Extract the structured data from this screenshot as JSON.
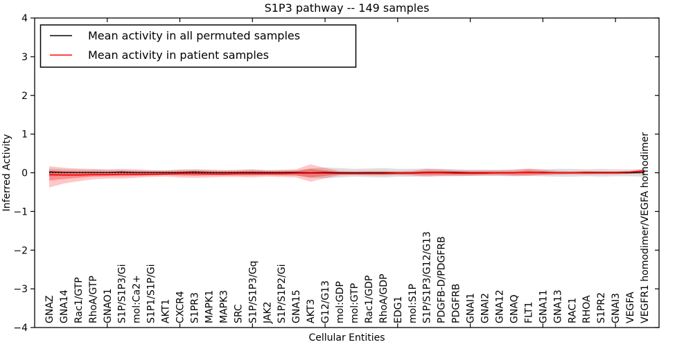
{
  "figure": {
    "title": "S1P3 pathway -- 149 samples",
    "xlabel": "Cellular Entities",
    "ylabel": "Inferred Activity"
  },
  "legend": {
    "position": "upper left",
    "entries": [
      {
        "label": "Mean activity in all permuted samples",
        "color": "#000000"
      },
      {
        "label": "Mean activity in patient samples",
        "color": "#ff0000"
      }
    ]
  },
  "chart_data": {
    "type": "line",
    "title": "S1P3 pathway -- 149 samples",
    "xlabel": "Cellular Entities",
    "ylabel": "Inferred Activity",
    "ylim": [
      -4,
      4
    ],
    "ytick_labels": [
      "4",
      "3",
      "2",
      "1",
      "0",
      "−1",
      "−2",
      "−3",
      "−4"
    ],
    "yticks": [
      4,
      3,
      2,
      1,
      0,
      -1,
      -2,
      -3,
      -4
    ],
    "xtick_positions": [
      5,
      10,
      15,
      20,
      25,
      30,
      35,
      40
    ],
    "grid": false,
    "legend_position": "upper left",
    "zero_line": {
      "value": 0,
      "style": "dotted",
      "color": "#000000"
    },
    "categories": [
      "GNAZ",
      "GNA14",
      "Rac1/GTP",
      "RhoA/GTP",
      "GNAO1",
      "S1P/S1P3/Gi",
      "mol:Ca2+",
      "S1P1/S1P/Gi",
      "AKT1",
      "CXCR4",
      "S1PR3",
      "MAPK1",
      "MAPK3",
      "SRC",
      "S1P/S1P3/Gq",
      "JAK2",
      "S1P/S1P2/Gi",
      "GNA15",
      "AKT3",
      "G12/G13",
      "mol:GDP",
      "mol:GTP",
      "Rac1/GDP",
      "RhoA/GDP",
      "EDG1",
      "mol:S1P",
      "S1P/S1P3/G12/G13",
      "PDGFB-D/PDGFRB",
      "PDGFRB",
      "GNAI1",
      "GNAI2",
      "GNA12",
      "GNAQ",
      "FLT1",
      "GNA11",
      "GNA13",
      "RAC1",
      "RHOA",
      "S1PR2",
      "GNAI3",
      "VEGFA",
      "VEGFR1 homodimer/VEGFA homodimer"
    ],
    "series": [
      {
        "name": "Mean activity in all permuted samples",
        "color": "#000000",
        "values": [
          0.02,
          0.01,
          0.01,
          0.01,
          0.01,
          0.02,
          0.01,
          0.01,
          0.01,
          0.01,
          0.02,
          0.01,
          0.01,
          0.01,
          0.01,
          0.01,
          0.01,
          0.01,
          0.0,
          0.01,
          0.0,
          0.0,
          0.0,
          0.0,
          0.0,
          0.0,
          0.01,
          0.01,
          0.01,
          0.0,
          0.0,
          0.0,
          0.0,
          0.01,
          0.01,
          0.0,
          0.0,
          0.0,
          0.0,
          0.0,
          0.0,
          0.01
        ]
      },
      {
        "name": "Mean activity in patient samples",
        "color": "#ff0000",
        "values": [
          -0.05,
          -0.06,
          -0.06,
          -0.05,
          -0.05,
          -0.04,
          -0.04,
          -0.04,
          -0.03,
          -0.02,
          -0.02,
          -0.03,
          -0.03,
          -0.02,
          -0.02,
          -0.02,
          -0.02,
          -0.01,
          -0.01,
          -0.01,
          -0.02,
          -0.02,
          -0.02,
          -0.02,
          -0.01,
          -0.01,
          0.0,
          0.0,
          -0.01,
          -0.01,
          -0.01,
          0.0,
          0.0,
          0.01,
          0.0,
          0.0,
          0.0,
          0.01,
          0.01,
          0.01,
          0.02,
          0.05
        ]
      }
    ],
    "bands": [
      {
        "name": "permuted-samples-range",
        "color": "#888888",
        "opacity": 0.28,
        "upper": [
          0.11,
          0.09,
          0.08,
          0.08,
          0.07,
          0.07,
          0.06,
          0.06,
          0.06,
          0.08,
          0.08,
          0.07,
          0.06,
          0.06,
          0.08,
          0.06,
          0.06,
          0.07,
          0.11,
          0.14,
          0.12,
          0.1,
          0.11,
          0.12,
          0.1,
          0.1,
          0.11,
          0.1,
          0.09,
          0.08,
          0.08,
          0.08,
          0.09,
          0.1,
          0.09,
          0.1,
          0.1,
          0.09,
          0.1,
          0.09,
          0.09,
          0.1
        ],
        "lower": [
          -0.09,
          -0.07,
          -0.06,
          -0.06,
          -0.05,
          -0.05,
          -0.06,
          -0.06,
          -0.06,
          -0.06,
          -0.06,
          -0.05,
          -0.06,
          -0.06,
          -0.06,
          -0.06,
          -0.06,
          -0.07,
          -0.13,
          -0.14,
          -0.12,
          -0.1,
          -0.11,
          -0.12,
          -0.1,
          -0.1,
          -0.09,
          -0.08,
          -0.09,
          -0.08,
          -0.08,
          -0.08,
          -0.09,
          -0.08,
          -0.09,
          -0.1,
          -0.1,
          -0.09,
          -0.1,
          -0.09,
          -0.09,
          -0.1
        ]
      },
      {
        "name": "patient-samples-range-outer",
        "color": "#ff0000",
        "opacity": 0.22,
        "upper": [
          0.17,
          0.13,
          0.11,
          0.1,
          0.09,
          0.1,
          0.09,
          0.07,
          0.06,
          0.08,
          0.09,
          0.08,
          0.07,
          0.08,
          0.09,
          0.07,
          0.08,
          0.09,
          0.22,
          0.12,
          0.05,
          0.04,
          0.05,
          0.05,
          0.04,
          0.05,
          0.1,
          0.09,
          0.07,
          0.06,
          0.06,
          0.06,
          0.07,
          0.11,
          0.08,
          0.05,
          0.04,
          0.05,
          0.04,
          0.04,
          0.05,
          0.09
        ],
        "lower": [
          -0.38,
          -0.28,
          -0.22,
          -0.17,
          -0.15,
          -0.15,
          -0.13,
          -0.11,
          -0.1,
          -0.12,
          -0.13,
          -0.12,
          -0.11,
          -0.11,
          -0.12,
          -0.1,
          -0.11,
          -0.12,
          -0.23,
          -0.14,
          -0.07,
          -0.06,
          -0.07,
          -0.07,
          -0.06,
          -0.07,
          -0.1,
          -0.09,
          -0.08,
          -0.08,
          -0.07,
          -0.07,
          -0.08,
          -0.08,
          -0.06,
          -0.05,
          -0.04,
          -0.05,
          -0.04,
          -0.04,
          -0.03,
          -0.02
        ]
      },
      {
        "name": "patient-samples-range-inner",
        "color": "#ff0000",
        "opacity": 0.3,
        "upper": [
          0.06,
          0.04,
          0.03,
          0.03,
          0.02,
          0.03,
          0.03,
          0.02,
          0.02,
          0.03,
          0.04,
          0.03,
          0.02,
          0.03,
          0.04,
          0.03,
          0.03,
          0.04,
          0.1,
          0.06,
          0.02,
          0.01,
          0.02,
          0.02,
          0.01,
          0.02,
          0.05,
          0.05,
          0.03,
          0.03,
          0.03,
          0.03,
          0.03,
          0.06,
          0.04,
          0.02,
          0.02,
          0.03,
          0.02,
          0.02,
          0.03,
          0.07
        ],
        "lower": [
          -0.2,
          -0.16,
          -0.13,
          -0.1,
          -0.09,
          -0.09,
          -0.08,
          -0.07,
          -0.06,
          -0.07,
          -0.08,
          -0.07,
          -0.07,
          -0.07,
          -0.07,
          -0.06,
          -0.07,
          -0.07,
          -0.12,
          -0.08,
          -0.04,
          -0.04,
          -0.04,
          -0.04,
          -0.04,
          -0.04,
          -0.05,
          -0.05,
          -0.05,
          -0.05,
          -0.04,
          -0.04,
          -0.05,
          -0.05,
          -0.04,
          -0.03,
          -0.03,
          -0.03,
          -0.03,
          -0.03,
          -0.02,
          0.0
        ]
      }
    ]
  }
}
